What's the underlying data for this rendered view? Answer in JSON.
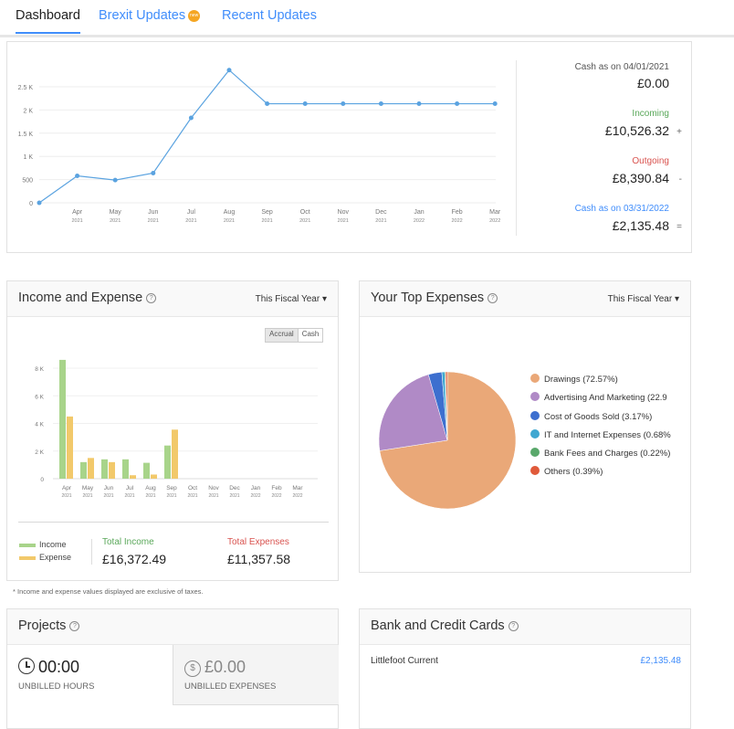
{
  "tabs": {
    "dashboard": "Dashboard",
    "brexit": "Brexit Updates",
    "brexit_badge": "new",
    "recent": "Recent Updates"
  },
  "cashflow": {
    "cash_start_label": "Cash as on 04/01/2021",
    "cash_start_value": "£0.00",
    "incoming_label": "Incoming",
    "incoming_value": "£10,526.32",
    "incoming_sign": "+",
    "outgoing_label": "Outgoing",
    "outgoing_value": "£8,390.84",
    "outgoing_sign": "-",
    "cash_end_label": "Cash as on 03/31/2022",
    "cash_end_value": "£2,135.48",
    "cash_end_sign": "=",
    "colors": {
      "incoming": "#5aa85a",
      "outgoing": "#d9534f",
      "cash_end": "#408dfb",
      "line": "#5ba3e0"
    }
  },
  "income_expense": {
    "title": "Income and Expense",
    "period": "This Fiscal Year ▾",
    "toggle_accrual": "Accrual",
    "toggle_cash": "Cash",
    "legend_income": "Income",
    "legend_expense": "Expense",
    "total_income_label": "Total Income",
    "total_income_value": "£16,372.49",
    "total_expenses_label": "Total Expenses",
    "total_expenses_value": "£11,357.58",
    "footnote": "* Income and expense values displayed are exclusive of taxes.",
    "colors": {
      "income": "#a8d48a",
      "expense": "#f2c96b"
    }
  },
  "top_expenses": {
    "title": "Your Top Expenses",
    "period": "This Fiscal Year ▾",
    "legend": [
      {
        "label": "Drawings (72.57%)",
        "color": "#eaa878"
      },
      {
        "label": "Advertising And Marketing (22.9",
        "color": "#b08ac6"
      },
      {
        "label": "Cost of Goods Sold (3.17%)",
        "color": "#3d6fcf"
      },
      {
        "label": "IT and Internet Expenses (0.68%",
        "color": "#3fa7d1"
      },
      {
        "label": "Bank Fees and Charges (0.22%)",
        "color": "#59a86b"
      },
      {
        "label": "Others (0.39%)",
        "color": "#e05a3a"
      }
    ]
  },
  "projects": {
    "title": "Projects",
    "hours_value": "00:00",
    "hours_label": "UNBILLED HOURS",
    "expenses_value": "£0.00",
    "expenses_label": "UNBILLED EXPENSES"
  },
  "bank": {
    "title": "Bank and Credit Cards",
    "account_name": "Littlefoot Current",
    "account_value": "£2,135.48"
  },
  "chart_data": [
    {
      "type": "line",
      "x": [
        "Apr 2021",
        "May 2021",
        "Jun 2021",
        "Jul 2021",
        "Aug 2021",
        "Sep 2021",
        "Oct 2021",
        "Nov 2021",
        "Dec 2021",
        "Jan 2022",
        "Feb 2022",
        "Mar 2022"
      ],
      "x_months": [
        "Apr",
        "May",
        "Jun",
        "Jul",
        "Aug",
        "Sep",
        "Oct",
        "Nov",
        "Dec",
        "Jan",
        "Feb",
        "Mar"
      ],
      "x_years": [
        "2021",
        "2021",
        "2021",
        "2021",
        "2021",
        "2021",
        "2021",
        "2021",
        "2021",
        "2022",
        "2022",
        "2022"
      ],
      "start_value": 0,
      "values": [
        580,
        490,
        640,
        1830,
        2860,
        2135,
        2135,
        2135,
        2135,
        2135,
        2135,
        2135
      ],
      "yticks": [
        0,
        500,
        1000,
        1500,
        2000,
        2500
      ],
      "ytick_labels": [
        "0",
        "500",
        "1 K",
        "1.5 K",
        "2 K",
        "2.5 K"
      ],
      "ylim": [
        0,
        2500
      ]
    },
    {
      "type": "bar",
      "categories_month": [
        "Apr",
        "May",
        "Jun",
        "Jul",
        "Aug",
        "Sep",
        "Oct",
        "Nov",
        "Dec",
        "Jan",
        "Feb",
        "Mar"
      ],
      "categories_year": [
        "2021",
        "2021",
        "2021",
        "2021",
        "2021",
        "2021",
        "2021",
        "2021",
        "2021",
        "2022",
        "2022",
        "2022"
      ],
      "series": [
        {
          "name": "Income",
          "values": [
            8600,
            1200,
            1400,
            1400,
            1150,
            2400,
            0,
            0,
            0,
            0,
            0,
            0
          ]
        },
        {
          "name": "Expense",
          "values": [
            4500,
            1500,
            1200,
            250,
            300,
            3550,
            0,
            0,
            0,
            0,
            0,
            0
          ]
        }
      ],
      "yticks": [
        0,
        2000,
        4000,
        6000,
        8000
      ],
      "ytick_labels": [
        "0",
        "2 K",
        "4 K",
        "6 K",
        "8 K"
      ],
      "ylim": [
        0,
        8000
      ]
    },
    {
      "type": "pie",
      "labels": [
        "Drawings",
        "Advertising And Marketing",
        "Cost of Goods Sold",
        "IT and Internet Expenses",
        "Bank Fees and Charges",
        "Others"
      ],
      "values": [
        72.57,
        22.97,
        3.17,
        0.68,
        0.22,
        0.39
      ]
    }
  ]
}
